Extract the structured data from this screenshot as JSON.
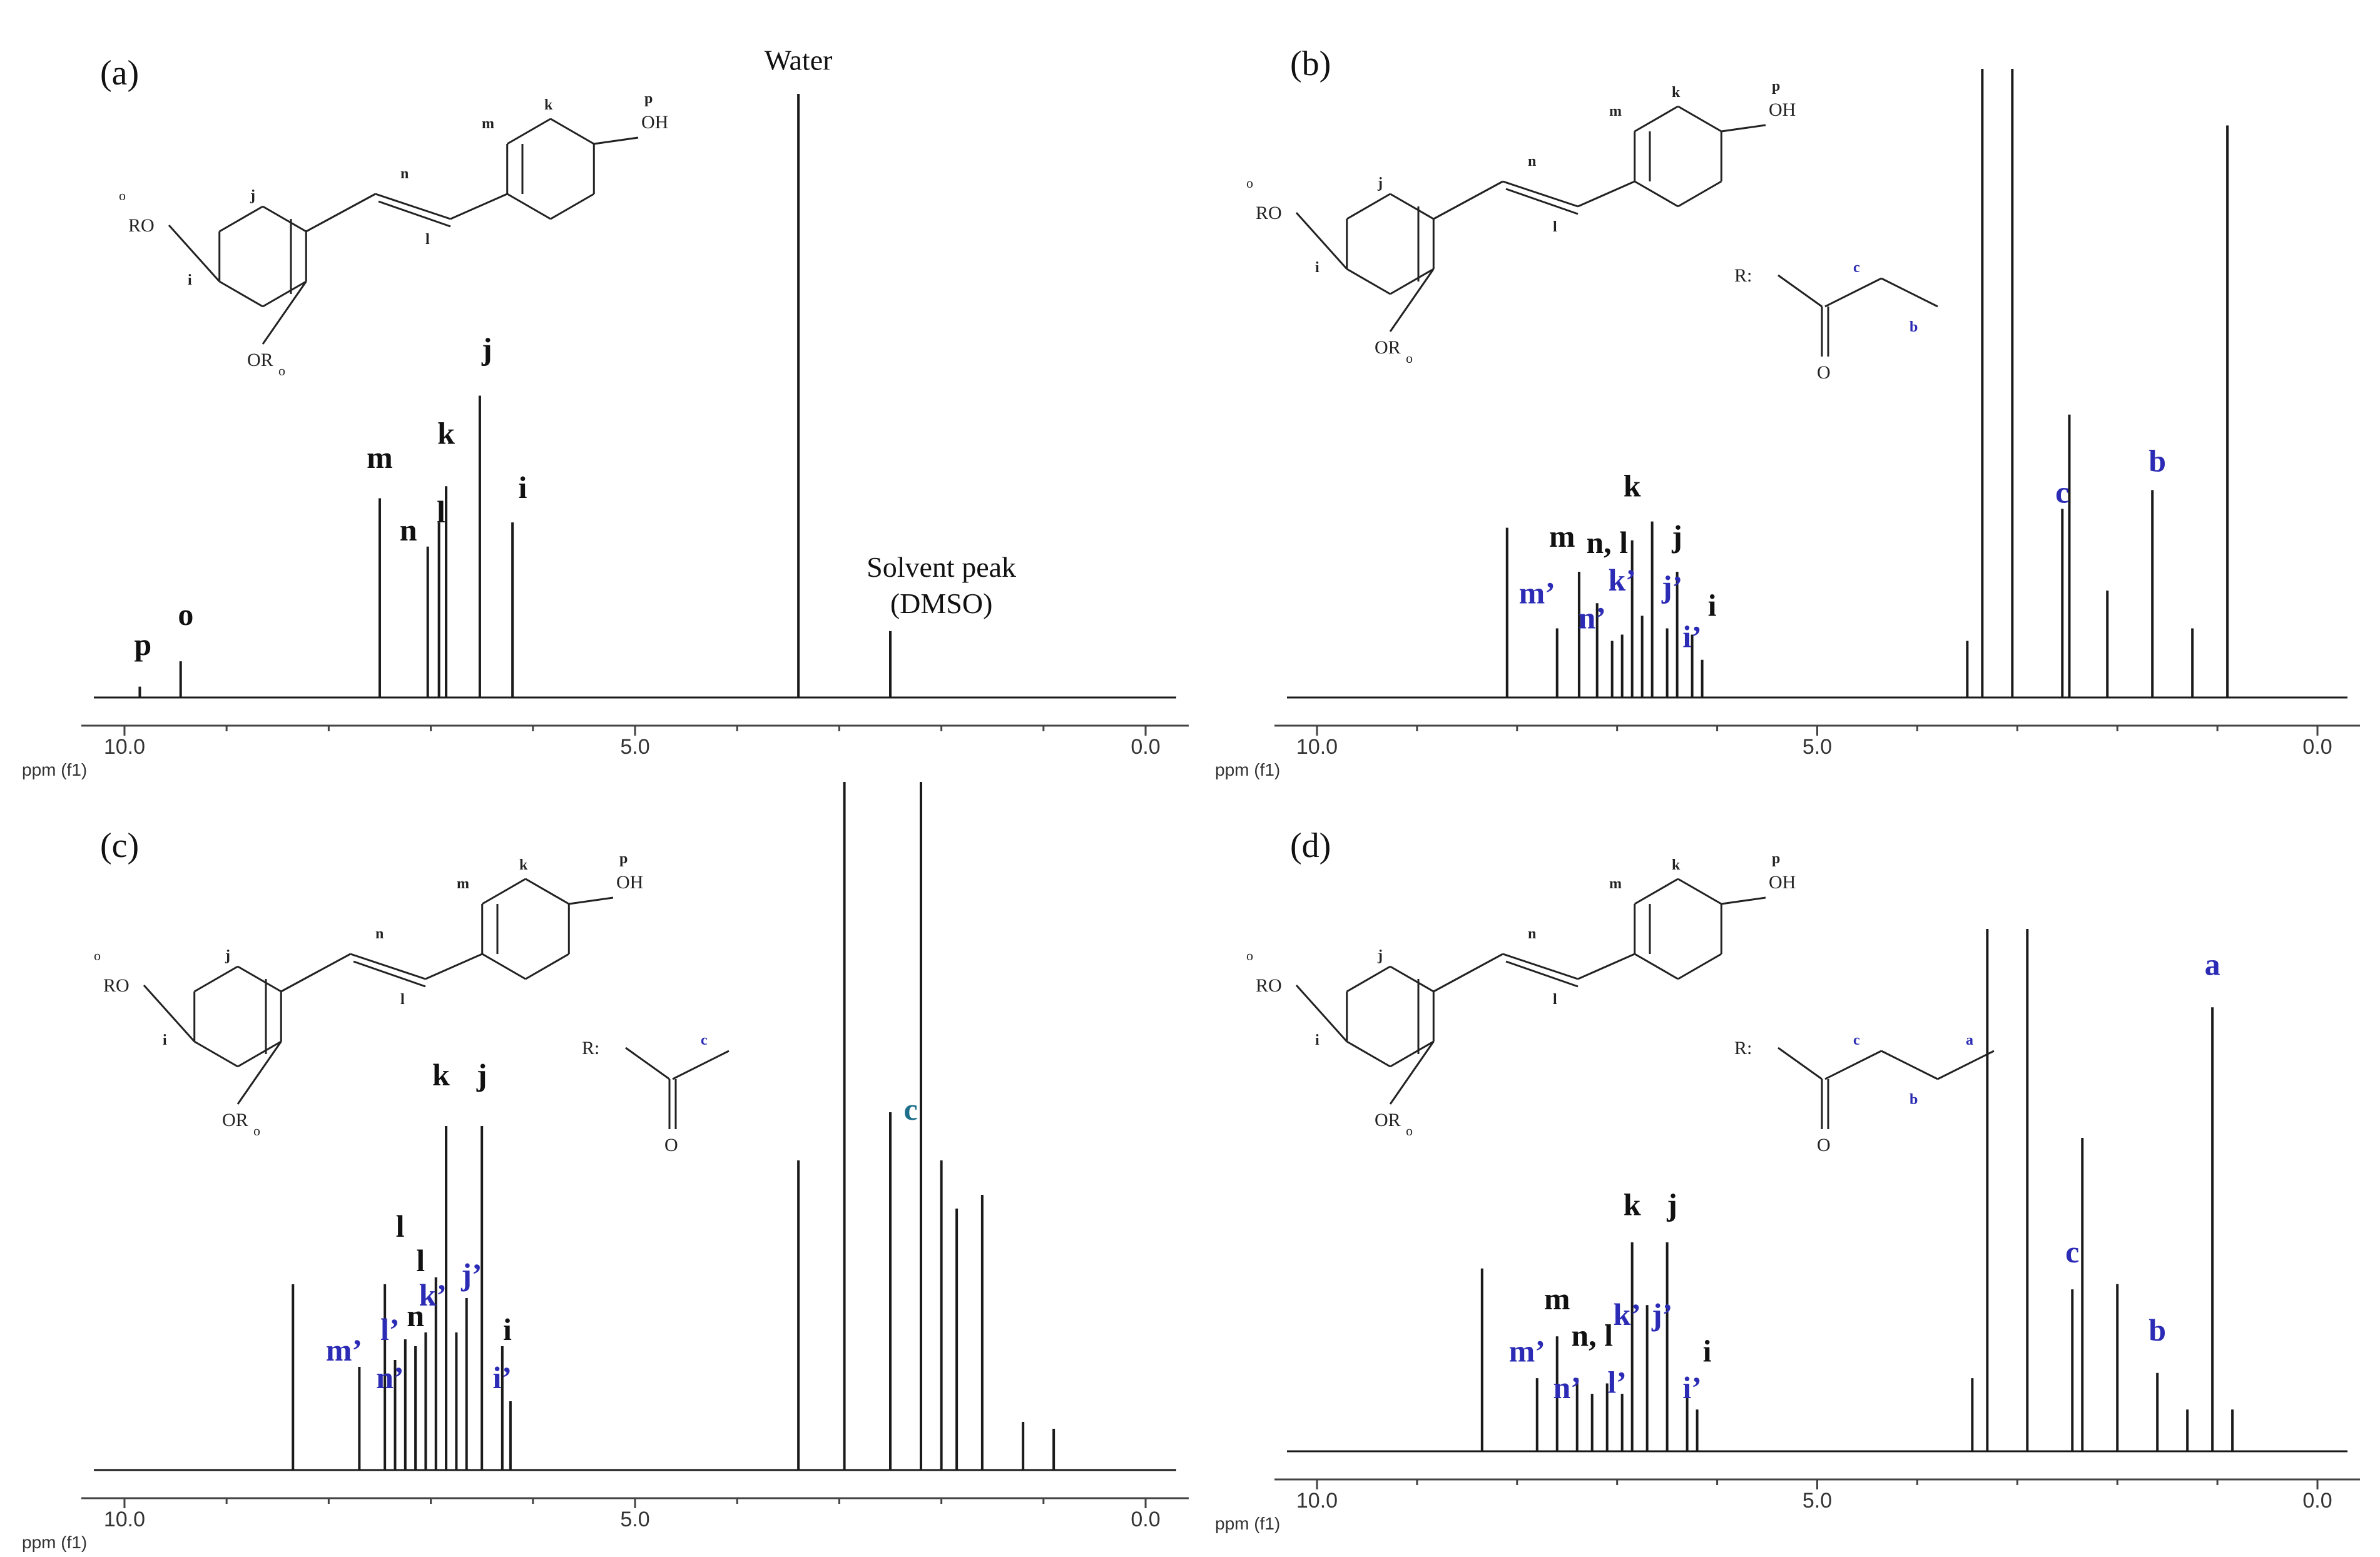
{
  "figure": {
    "axis_unit_label": "ppm (f1)",
    "r_label": "R:",
    "colors": {
      "trace": "#1a1a1a",
      "primary_label": "#111111",
      "secondary_label": "#2b2bb5",
      "teal_label": "#1f6f8b"
    }
  },
  "chart_data": [
    {
      "panel": "(a)",
      "type": "line",
      "xlabel": "ppm (f1)",
      "xlim": [
        10.3,
        -0.3
      ],
      "ticks": [
        10.0,
        5.0,
        0.0
      ],
      "tick_labels": [
        "10.0",
        "5.0",
        "0.0"
      ],
      "grid": false,
      "peaks": [
        {
          "ppm": 9.85,
          "height": 0.018
        },
        {
          "ppm": 9.45,
          "height": 0.06
        },
        {
          "ppm": 7.5,
          "height": 0.33
        },
        {
          "ppm": 7.03,
          "height": 0.25
        },
        {
          "ppm": 6.92,
          "height": 0.29
        },
        {
          "ppm": 6.85,
          "height": 0.35
        },
        {
          "ppm": 6.52,
          "height": 0.5
        },
        {
          "ppm": 6.2,
          "height": 0.29
        },
        {
          "ppm": 3.4,
          "height": 1.0
        },
        {
          "ppm": 2.5,
          "height": 0.11
        }
      ],
      "peak_labels": [
        {
          "text": "p",
          "ppm": 9.82,
          "height": 0.06,
          "color": "primary"
        },
        {
          "text": "o",
          "ppm": 9.4,
          "height": 0.11,
          "color": "primary"
        },
        {
          "text": "m",
          "ppm": 7.5,
          "height": 0.37,
          "color": "primary"
        },
        {
          "text": "n",
          "ppm": 7.22,
          "height": 0.25,
          "color": "primary"
        },
        {
          "text": "l",
          "ppm": 6.9,
          "height": 0.28,
          "color": "primary"
        },
        {
          "text": "k",
          "ppm": 6.85,
          "height": 0.41,
          "color": "primary"
        },
        {
          "text": "j",
          "ppm": 6.45,
          "height": 0.55,
          "color": "primary"
        },
        {
          "text": "i",
          "ppm": 6.1,
          "height": 0.32,
          "color": "primary"
        }
      ],
      "annotations": [
        {
          "text": "Water",
          "ppm": 3.4,
          "height": 1.04
        },
        {
          "text": "Solvent peak",
          "ppm": 2.0,
          "height": 0.2
        },
        {
          "text": "(DMSO)",
          "ppm": 2.0,
          "height": 0.14
        }
      ],
      "structure": {
        "atoms": {
          "k": "k",
          "p": "p",
          "oh": "OH",
          "m": "m",
          "n": "n",
          "l": "l",
          "o1": "o",
          "ro": "RO",
          "j": "j",
          "i": "i",
          "or": "OR",
          "o2": "o"
        },
        "r_group": null
      }
    },
    {
      "panel": "(b)",
      "type": "line",
      "xlabel": "ppm (f1)",
      "xlim": [
        10.3,
        -0.3
      ],
      "ticks": [
        10.0,
        5.0,
        0.0
      ],
      "tick_labels": [
        "10.0",
        "5.0",
        "0.0"
      ],
      "grid": false,
      "peaks": [
        {
          "ppm": 8.1,
          "height": 0.27
        },
        {
          "ppm": 7.6,
          "height": 0.11
        },
        {
          "ppm": 7.38,
          "height": 0.2
        },
        {
          "ppm": 7.2,
          "height": 0.15
        },
        {
          "ppm": 7.05,
          "height": 0.09
        },
        {
          "ppm": 6.95,
          "height": 0.1
        },
        {
          "ppm": 6.85,
          "height": 0.25
        },
        {
          "ppm": 6.75,
          "height": 0.13
        },
        {
          "ppm": 6.65,
          "height": 0.28
        },
        {
          "ppm": 6.5,
          "height": 0.11
        },
        {
          "ppm": 6.4,
          "height": 0.2
        },
        {
          "ppm": 6.25,
          "height": 0.1
        },
        {
          "ppm": 6.15,
          "height": 0.06
        },
        {
          "ppm": 3.5,
          "height": 0.09
        },
        {
          "ppm": 3.35,
          "height": 1.0
        },
        {
          "ppm": 3.05,
          "height": 1.0
        },
        {
          "ppm": 2.55,
          "height": 0.3
        },
        {
          "ppm": 2.48,
          "height": 0.45
        },
        {
          "ppm": 2.1,
          "height": 0.17
        },
        {
          "ppm": 1.65,
          "height": 0.33
        },
        {
          "ppm": 1.25,
          "height": 0.11
        },
        {
          "ppm": 0.9,
          "height": 0.91
        }
      ],
      "peak_labels": [
        {
          "text": "k",
          "ppm": 6.85,
          "height": 0.31,
          "color": "primary"
        },
        {
          "text": "m",
          "ppm": 7.55,
          "height": 0.23,
          "color": "primary"
        },
        {
          "text": "n, l",
          "ppm": 7.1,
          "height": 0.22,
          "color": "primary"
        },
        {
          "text": "j",
          "ppm": 6.4,
          "height": 0.23,
          "color": "primary"
        },
        {
          "text": "m’",
          "ppm": 7.8,
          "height": 0.14,
          "color": "secondary"
        },
        {
          "text": "k’",
          "ppm": 6.95,
          "height": 0.16,
          "color": "secondary"
        },
        {
          "text": "j’",
          "ppm": 6.45,
          "height": 0.15,
          "color": "secondary"
        },
        {
          "text": "n’",
          "ppm": 7.25,
          "height": 0.1,
          "color": "secondary"
        },
        {
          "text": "i",
          "ppm": 6.05,
          "height": 0.12,
          "color": "primary"
        },
        {
          "text": "i’",
          "ppm": 6.25,
          "height": 0.07,
          "color": "secondary"
        },
        {
          "text": "c",
          "ppm": 2.55,
          "height": 0.3,
          "color": "secondary"
        },
        {
          "text": "b",
          "ppm": 1.6,
          "height": 0.35,
          "color": "secondary"
        }
      ],
      "annotations": [],
      "structure": {
        "atoms": {
          "k": "k",
          "p": "p",
          "oh": "OH",
          "m": "m",
          "n": "n",
          "l": "l",
          "o1": "o",
          "ro": "RO",
          "j": "j",
          "i": "i",
          "or": "OR",
          "o2": "o"
        },
        "r_group": {
          "carbon_labels": [
            "c",
            "b"
          ],
          "oxygen": "O"
        }
      }
    },
    {
      "panel": "(c)",
      "type": "line",
      "xlabel": "ppm (f1)",
      "xlim": [
        10.3,
        -0.3
      ],
      "ticks": [
        10.0,
        5.0,
        0.0
      ],
      "tick_labels": [
        "10.0",
        "5.0",
        "0.0"
      ],
      "grid": false,
      "peaks": [
        {
          "ppm": 8.35,
          "height": 0.27
        },
        {
          "ppm": 7.7,
          "height": 0.15
        },
        {
          "ppm": 7.45,
          "height": 0.27
        },
        {
          "ppm": 7.35,
          "height": 0.16
        },
        {
          "ppm": 7.25,
          "height": 0.19
        },
        {
          "ppm": 7.15,
          "height": 0.18
        },
        {
          "ppm": 7.05,
          "height": 0.2
        },
        {
          "ppm": 6.95,
          "height": 0.28
        },
        {
          "ppm": 6.85,
          "height": 0.5
        },
        {
          "ppm": 6.75,
          "height": 0.2
        },
        {
          "ppm": 6.65,
          "height": 0.25
        },
        {
          "ppm": 6.5,
          "height": 0.5
        },
        {
          "ppm": 6.3,
          "height": 0.18
        },
        {
          "ppm": 6.22,
          "height": 0.1
        },
        {
          "ppm": 3.4,
          "height": 0.45
        },
        {
          "ppm": 2.95,
          "height": 1.0
        },
        {
          "ppm": 2.5,
          "height": 0.52
        },
        {
          "ppm": 2.2,
          "height": 1.0
        },
        {
          "ppm": 2.0,
          "height": 0.45
        },
        {
          "ppm": 1.85,
          "height": 0.38
        },
        {
          "ppm": 1.6,
          "height": 0.4
        },
        {
          "ppm": 1.2,
          "height": 0.07
        },
        {
          "ppm": 0.9,
          "height": 0.06
        }
      ],
      "peak_labels": [
        {
          "text": "k",
          "ppm": 6.9,
          "height": 0.55,
          "color": "primary"
        },
        {
          "text": "j",
          "ppm": 6.5,
          "height": 0.55,
          "color": "primary"
        },
        {
          "text": "l",
          "ppm": 7.3,
          "height": 0.33,
          "color": "primary"
        },
        {
          "text": "l",
          "ppm": 7.1,
          "height": 0.28,
          "color": "primary"
        },
        {
          "text": "n",
          "ppm": 7.15,
          "height": 0.2,
          "color": "primary"
        },
        {
          "text": "k’",
          "ppm": 6.98,
          "height": 0.23,
          "color": "secondary"
        },
        {
          "text": "j’",
          "ppm": 6.6,
          "height": 0.26,
          "color": "secondary"
        },
        {
          "text": "l’",
          "ppm": 7.4,
          "height": 0.18,
          "color": "secondary"
        },
        {
          "text": "m’",
          "ppm": 7.85,
          "height": 0.15,
          "color": "secondary"
        },
        {
          "text": "n’",
          "ppm": 7.4,
          "height": 0.11,
          "color": "secondary"
        },
        {
          "text": "i",
          "ppm": 6.25,
          "height": 0.18,
          "color": "primary"
        },
        {
          "text": "i’",
          "ppm": 6.3,
          "height": 0.11,
          "color": "secondary"
        },
        {
          "text": "c",
          "ppm": 2.3,
          "height": 0.5,
          "color": "teal"
        }
      ],
      "annotations": [],
      "structure": {
        "atoms": {
          "k": "k",
          "p": "p",
          "oh": "OH",
          "m": "m",
          "n": "n",
          "l": "l",
          "o1": "o",
          "ro": "RO",
          "j": "j",
          "i": "i",
          "or": "OR",
          "o2": "o"
        },
        "r_group": {
          "carbon_labels": [
            "c"
          ],
          "oxygen": "O"
        }
      }
    },
    {
      "panel": "(d)",
      "type": "line",
      "xlabel": "ppm (f1)",
      "xlim": [
        10.3,
        -0.3
      ],
      "ticks": [
        10.0,
        5.0,
        0.0
      ],
      "tick_labels": [
        "10.0",
        "5.0",
        "0.0"
      ],
      "grid": false,
      "peaks": [
        {
          "ppm": 8.35,
          "height": 0.35
        },
        {
          "ppm": 7.8,
          "height": 0.14
        },
        {
          "ppm": 7.6,
          "height": 0.22
        },
        {
          "ppm": 7.4,
          "height": 0.14
        },
        {
          "ppm": 7.25,
          "height": 0.11
        },
        {
          "ppm": 7.1,
          "height": 0.13
        },
        {
          "ppm": 6.95,
          "height": 0.11
        },
        {
          "ppm": 6.85,
          "height": 0.4
        },
        {
          "ppm": 6.7,
          "height": 0.28
        },
        {
          "ppm": 6.5,
          "height": 0.4
        },
        {
          "ppm": 6.3,
          "height": 0.12
        },
        {
          "ppm": 6.2,
          "height": 0.08
        },
        {
          "ppm": 3.45,
          "height": 0.14
        },
        {
          "ppm": 3.3,
          "height": 1.0
        },
        {
          "ppm": 2.9,
          "height": 1.0
        },
        {
          "ppm": 2.45,
          "height": 0.31
        },
        {
          "ppm": 2.35,
          "height": 0.6
        },
        {
          "ppm": 2.0,
          "height": 0.32
        },
        {
          "ppm": 1.6,
          "height": 0.15
        },
        {
          "ppm": 1.3,
          "height": 0.08
        },
        {
          "ppm": 1.05,
          "height": 0.85
        },
        {
          "ppm": 0.85,
          "height": 0.08
        }
      ],
      "peak_labels": [
        {
          "text": "k",
          "ppm": 6.85,
          "height": 0.44,
          "color": "primary"
        },
        {
          "text": "j",
          "ppm": 6.45,
          "height": 0.44,
          "color": "primary"
        },
        {
          "text": "m",
          "ppm": 7.6,
          "height": 0.26,
          "color": "primary"
        },
        {
          "text": "n, l",
          "ppm": 7.25,
          "height": 0.19,
          "color": "primary"
        },
        {
          "text": "k’",
          "ppm": 6.9,
          "height": 0.23,
          "color": "secondary"
        },
        {
          "text": "j’",
          "ppm": 6.55,
          "height": 0.23,
          "color": "secondary"
        },
        {
          "text": "m’",
          "ppm": 7.9,
          "height": 0.16,
          "color": "secondary"
        },
        {
          "text": "n’",
          "ppm": 7.5,
          "height": 0.09,
          "color": "secondary"
        },
        {
          "text": "l’",
          "ppm": 7.0,
          "height": 0.1,
          "color": "secondary"
        },
        {
          "text": "i",
          "ppm": 6.1,
          "height": 0.16,
          "color": "primary"
        },
        {
          "text": "i’",
          "ppm": 6.25,
          "height": 0.09,
          "color": "secondary"
        },
        {
          "text": "c",
          "ppm": 2.45,
          "height": 0.35,
          "color": "secondary"
        },
        {
          "text": "b",
          "ppm": 1.6,
          "height": 0.2,
          "color": "secondary"
        },
        {
          "text": "a",
          "ppm": 1.05,
          "height": 0.9,
          "color": "secondary"
        }
      ],
      "annotations": [],
      "structure": {
        "atoms": {
          "k": "k",
          "p": "p",
          "oh": "OH",
          "m": "m",
          "n": "n",
          "l": "l",
          "o1": "o",
          "ro": "RO",
          "j": "j",
          "i": "i",
          "or": "OR",
          "o2": "o"
        },
        "r_group": {
          "carbon_labels": [
            "c",
            "b",
            "a"
          ],
          "oxygen": "O"
        }
      }
    }
  ]
}
